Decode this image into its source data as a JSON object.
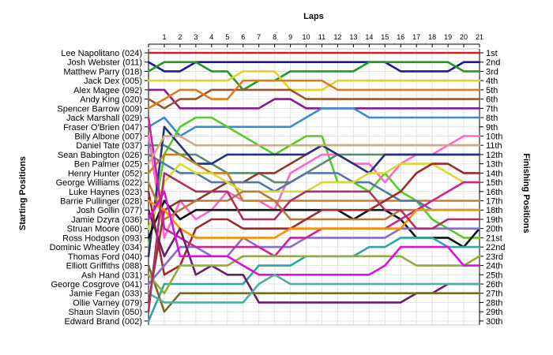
{
  "chart_data": {
    "type": "line",
    "title": "Laps",
    "ylabel_left": "Starting Positions",
    "ylabel_right": "Finishing Positions",
    "x": [
      0,
      1,
      2,
      3,
      4,
      5,
      6,
      7,
      8,
      9,
      10,
      11,
      12,
      13,
      14,
      15,
      16,
      17,
      18,
      19,
      20,
      21
    ],
    "x_tick_labels": [
      "1",
      "2",
      "3",
      "4",
      "5",
      "6",
      "7",
      "8",
      "9",
      "10",
      "11",
      "12",
      "13",
      "14",
      "15",
      "16",
      "17",
      "18",
      "19",
      "20",
      "21"
    ],
    "ylim": [
      1,
      30
    ],
    "grid": true,
    "start_labels": [
      "Lee Napolitano (024)",
      "Josh Webster (011)",
      "Matthew Parry (018)",
      "Jack Dex (005)",
      "Alex Magee (092)",
      "Andy King (020)",
      "Spencer Barrow (009)",
      "Jack Marshall (029)",
      "Fraser O'Brien (047)",
      "Billy Albone (007)",
      "Daniel Tate (037)",
      "Sean Babington (026)",
      "Ben Palmer (025)",
      "Henry Hunter (052)",
      "George Williams (022)",
      "Luke Haynes (023)",
      "Barrie Pullinger (028)",
      "Josh Gollin (077)",
      "Jamie Dzyra (036)",
      "Struan Moore (060)",
      "Ross Hodgson (093)",
      "Dominic Wheatley (034)",
      "Thomas Ford (040)",
      "Elliott Griffiths (088)",
      "Ash Hand (031)",
      "George Cosgrove (041)",
      "Jamie Fegan (033)",
      "Ollie Varney (079)",
      "Shaun Slavin (050)",
      "Edward Brand (002)"
    ],
    "finish_labels": [
      "1st",
      "2nd",
      "3rd",
      "4th",
      "5th",
      "6th",
      "7th",
      "8th",
      "9th",
      "10th",
      "11th",
      "12th",
      "13th",
      "14th",
      "15th",
      "16th",
      "17th",
      "18th",
      "19th",
      "20th",
      "21st",
      "22nd",
      "23rd",
      "24th",
      "25th",
      "26th",
      "27th",
      "28th",
      "29th",
      "30th"
    ],
    "series": [
      {
        "color": "#cc2222",
        "values": [
          1,
          1,
          1,
          1,
          1,
          1,
          1,
          1,
          1,
          1,
          1,
          1,
          1,
          1,
          1,
          1,
          1,
          1,
          1,
          1,
          1,
          1
        ]
      },
      {
        "color": "#1a1aa0",
        "values": [
          2,
          3,
          3,
          2,
          2,
          2,
          2,
          2,
          2,
          2,
          2,
          2,
          2,
          2,
          2,
          2,
          3,
          3,
          3,
          3,
          2,
          2
        ]
      },
      {
        "color": "#229922",
        "values": [
          3,
          2,
          2,
          2,
          3,
          3,
          5,
          4,
          4,
          3,
          3,
          3,
          3,
          3,
          2,
          2,
          2,
          2,
          2,
          2,
          3,
          3
        ]
      },
      {
        "color": "#e6d21e",
        "values": [
          4,
          4,
          4,
          4,
          4,
          4,
          3,
          3,
          3,
          5,
          5,
          5,
          4,
          4,
          4,
          4,
          4,
          4,
          4,
          4,
          4,
          4
        ]
      },
      {
        "color": "#8b1a8b",
        "values": [
          5,
          5,
          7,
          7,
          7,
          7,
          7,
          7,
          6,
          6,
          7,
          7,
          7,
          7,
          7,
          7,
          7,
          7,
          7,
          7,
          7,
          7
        ]
      },
      {
        "color": "#a0522d",
        "values": [
          6,
          7,
          6,
          6,
          5,
          5,
          5,
          5,
          5,
          5,
          6,
          6,
          6,
          6,
          6,
          6,
          6,
          6,
          6,
          6,
          6,
          6
        ]
      },
      {
        "color": "#e07b1c",
        "values": [
          7,
          6,
          5,
          5,
          6,
          6,
          4,
          4,
          4,
          4,
          4,
          4,
          5,
          5,
          5,
          5,
          5,
          5,
          5,
          5,
          5,
          5
        ]
      },
      {
        "color": "#3a8ad6",
        "values": [
          9,
          8,
          10,
          9,
          9,
          9,
          9,
          9,
          9,
          9,
          8,
          7,
          7,
          7,
          8,
          8,
          8,
          8,
          8,
          8,
          8,
          8
        ]
      },
      {
        "color": "#55cc22",
        "values": [
          22,
          12,
          9,
          8,
          8,
          9,
          10,
          11,
          12,
          11,
          10,
          10,
          15,
          15,
          16,
          14,
          16,
          17,
          19,
          20,
          21,
          21
        ]
      },
      {
        "color": "#ff66cc",
        "values": [
          10,
          21,
          17,
          19,
          18,
          16,
          17,
          17,
          18,
          14,
          13,
          12,
          12,
          13,
          13,
          15,
          13,
          12,
          12,
          11,
          10,
          10
        ]
      },
      {
        "color": "#5b8a6e",
        "values": [
          11,
          11,
          12,
          12,
          13,
          14,
          14,
          14,
          15,
          15,
          14,
          13,
          12,
          12,
          12,
          12,
          12,
          12,
          12,
          12,
          12,
          12
        ]
      },
      {
        "color": "#8b3a2a",
        "values": [
          28,
          18,
          17,
          17,
          16,
          15,
          15,
          14,
          14,
          13,
          12,
          11,
          11,
          11,
          11,
          11,
          11,
          11,
          11,
          11,
          11,
          11
        ]
      },
      {
        "color": "#223377",
        "values": [
          23,
          9,
          11,
          13,
          13,
          12,
          12,
          12,
          12,
          12,
          12,
          11,
          12,
          13,
          14,
          12,
          12,
          12,
          12,
          12,
          12,
          12
        ]
      },
      {
        "color": "#111111",
        "values": [
          21,
          17,
          19,
          18,
          18,
          18,
          18,
          18,
          18,
          18,
          18,
          18,
          18,
          19,
          18,
          18,
          19,
          21,
          21,
          21,
          22,
          20
        ]
      },
      {
        "color": "#c97f26",
        "values": [
          14,
          12,
          12,
          13,
          14,
          14,
          17,
          17,
          17,
          17,
          17,
          17,
          17,
          17,
          17,
          17,
          17,
          17,
          17,
          17,
          17,
          17
        ]
      },
      {
        "color": "#5577aa",
        "values": [
          12,
          13,
          14,
          14,
          15,
          15,
          15,
          15,
          16,
          15,
          14,
          14,
          14,
          15,
          15,
          16,
          17,
          17,
          18,
          18,
          18,
          18
        ]
      },
      {
        "color": "#d8d838",
        "values": [
          20,
          15,
          13,
          14,
          14,
          15,
          16,
          16,
          16,
          16,
          16,
          15,
          15,
          15,
          14,
          14,
          13,
          13,
          13,
          14,
          15,
          15
        ]
      },
      {
        "color": "#b87a3a",
        "values": [
          15,
          19,
          18,
          17,
          17,
          17,
          16,
          16,
          17,
          19,
          19,
          19,
          19,
          19,
          19,
          19,
          18,
          18,
          18,
          18,
          18,
          18
        ]
      },
      {
        "color": "#9e2b2b",
        "values": [
          16,
          25,
          24,
          20,
          19,
          19,
          20,
          20,
          20,
          20,
          19,
          18,
          18,
          18,
          18,
          17,
          16,
          14,
          13,
          13,
          14,
          14
        ]
      },
      {
        "color": "#8a6acc",
        "values": [
          26,
          24,
          22,
          22,
          23,
          23,
          21,
          22,
          22,
          22,
          21,
          21,
          21,
          21,
          21,
          21,
          20,
          20,
          20,
          20,
          20,
          20
        ]
      },
      {
        "color": "#2aa7a0",
        "values": [
          30,
          26,
          26,
          26,
          26,
          26,
          26,
          24,
          24,
          24,
          23,
          23,
          23,
          23,
          22,
          22,
          21,
          21,
          21,
          22,
          22,
          22
        ]
      },
      {
        "color": "#cc2299",
        "values": [
          8,
          20,
          21,
          22,
          22,
          22,
          22,
          22,
          23,
          21,
          21,
          20,
          20,
          20,
          20,
          20,
          19,
          18,
          17,
          16,
          15,
          15
        ]
      },
      {
        "color": "#d4a87a",
        "values": [
          13,
          10,
          10,
          11,
          11,
          11,
          11,
          11,
          11,
          11,
          11,
          11,
          11,
          11,
          11,
          11,
          11,
          11,
          11,
          11,
          11,
          11
        ]
      },
      {
        "color": "#ff8c00",
        "values": [
          17,
          18,
          20,
          21,
          21,
          21,
          21,
          21,
          21,
          20,
          20,
          20,
          20,
          20,
          20,
          20,
          20,
          18,
          18,
          18,
          18,
          18
        ]
      },
      {
        "color": "#6b1f6b",
        "values": [
          18,
          23,
          20,
          25,
          24,
          25,
          25,
          28,
          28,
          28,
          28,
          28,
          28,
          28,
          28,
          28,
          28,
          27,
          27,
          26,
          26,
          26
        ]
      },
      {
        "color": "#7a6a2a",
        "values": [
          24,
          29,
          27,
          27,
          27,
          27,
          27,
          27,
          27,
          27,
          27,
          27,
          27,
          27,
          27,
          27,
          27,
          27,
          27,
          27,
          27,
          27
        ]
      },
      {
        "color": "#8fae3a",
        "values": [
          25,
          27,
          24,
          24,
          24,
          24,
          23,
          23,
          23,
          23,
          23,
          23,
          23,
          23,
          23,
          23,
          23,
          24,
          24,
          24,
          24,
          23
        ]
      },
      {
        "color": "#dd11dd",
        "values": [
          19,
          16,
          23,
          23,
          23,
          23,
          24,
          25,
          25,
          25,
          25,
          25,
          25,
          25,
          25,
          24,
          22,
          22,
          22,
          22,
          24,
          24
        ]
      },
      {
        "color": "#4cb0a0",
        "values": [
          27,
          28,
          28,
          28,
          28,
          28,
          28,
          26,
          25,
          26,
          26,
          26,
          26,
          26,
          26,
          26,
          26,
          26,
          26,
          26,
          26,
          26
        ]
      },
      {
        "color": "#b03060",
        "values": [
          29,
          14,
          15,
          16,
          16,
          16,
          19,
          19,
          19,
          17,
          16,
          16,
          16,
          16,
          16,
          18,
          18,
          20,
          20,
          19,
          19,
          19
        ]
      }
    ]
  }
}
